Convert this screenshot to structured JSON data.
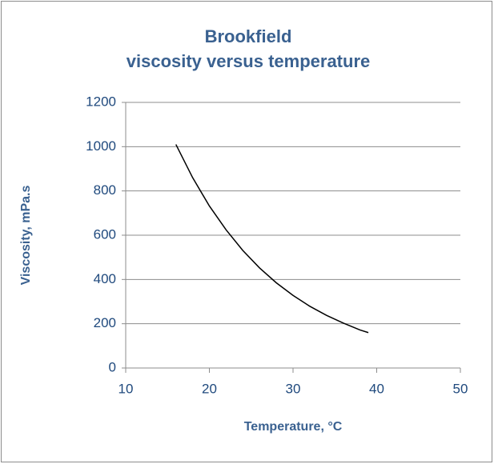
{
  "chart_data": {
    "type": "line",
    "title": [
      "Brookfield",
      "viscosity versus temperature"
    ],
    "x_label": "Temperature, °C",
    "y_label": "Viscosity, mPa.s",
    "x": [
      16,
      18,
      20,
      22,
      24,
      26,
      28,
      30,
      32,
      34,
      36,
      38,
      39
    ],
    "series": [
      {
        "color": "#000000",
        "values": [
          1010,
          860,
          732,
          624,
          531,
          452,
          385,
          328,
          279,
          238,
          203,
          172,
          160
        ]
      }
    ],
    "xlim": [
      10,
      50
    ],
    "xticks": [
      10,
      20,
      30,
      40,
      50
    ],
    "ylim": [
      0,
      1200
    ],
    "yticks": [
      0,
      200,
      400,
      600,
      800,
      1000,
      1200
    ],
    "grid": true
  }
}
